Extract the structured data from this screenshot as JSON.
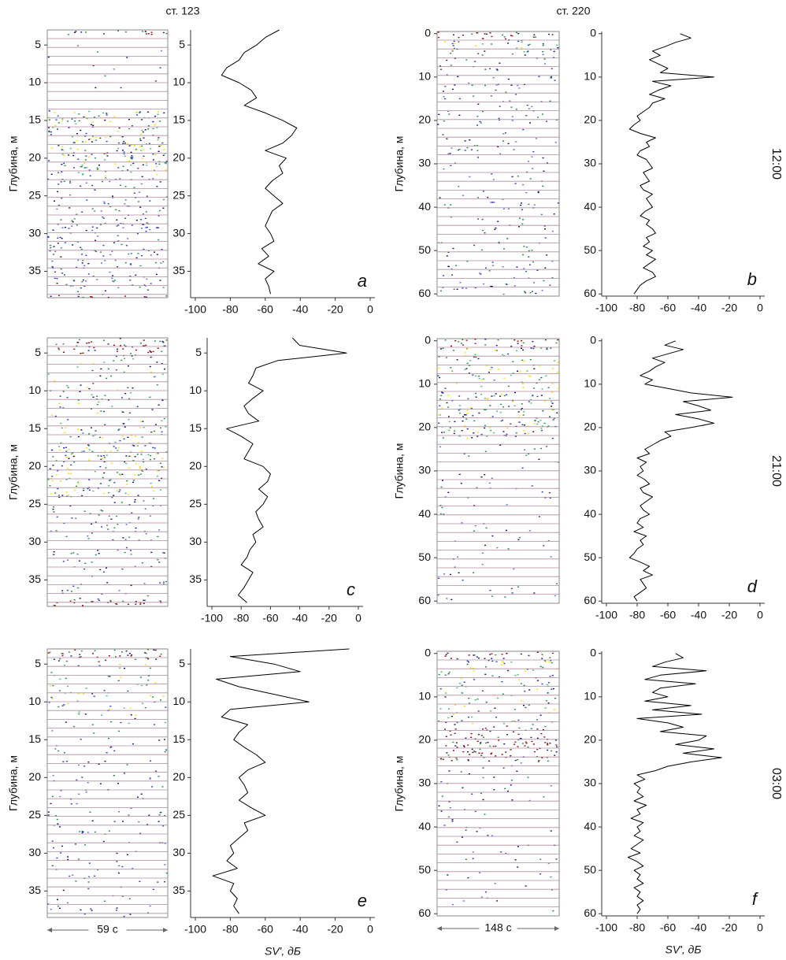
{
  "stations": [
    "ст. 123",
    "ст. 220"
  ],
  "chart_data": [
    {
      "type": "line",
      "panel": "a",
      "ylabel": "Глубина, м",
      "xlim": [
        -100,
        0
      ],
      "xticks": [
        -100,
        -80,
        -60,
        -40,
        -20,
        0
      ],
      "ylim": [
        3,
        38.5
      ],
      "yticks": [
        5,
        10,
        15,
        20,
        25,
        30,
        35
      ],
      "y": [
        3,
        4,
        5,
        6,
        7,
        8,
        9,
        10,
        11,
        12,
        13,
        14,
        15,
        16,
        17,
        18,
        19,
        20,
        21,
        22,
        23,
        24,
        25,
        26,
        27,
        28,
        29,
        30,
        31,
        32,
        33,
        34,
        35,
        36,
        37,
        38
      ],
      "series": [
        {
          "color": "#000000",
          "values": [
            -52,
            -60,
            -65,
            -72,
            -75,
            -82,
            -85,
            -75,
            -68,
            -65,
            -72,
            -60,
            -50,
            -42,
            -45,
            -50,
            -60,
            -48,
            -52,
            -50,
            -56,
            -60,
            -55,
            -50,
            -56,
            -58,
            -60,
            -57,
            -55,
            -62,
            -58,
            -64,
            -55,
            -60,
            -58,
            -57
          ]
        }
      ]
    },
    {
      "type": "line",
      "panel": "b",
      "ylabel": "Глубина, м",
      "time": "12:00",
      "xlim": [
        -100,
        0
      ],
      "xticks": [
        -100,
        -80,
        -60,
        -40,
        -20,
        0
      ],
      "ylim": [
        -0.5,
        60.5
      ],
      "yticks": [
        0,
        10,
        20,
        30,
        40,
        50,
        60
      ],
      "y": [
        0,
        1,
        2,
        3,
        4,
        5,
        6,
        7,
        8,
        9,
        10,
        11,
        12,
        13,
        14,
        15,
        16,
        17,
        18,
        19,
        20,
        21,
        22,
        23,
        24,
        25,
        26,
        27,
        28,
        29,
        30,
        31,
        32,
        33,
        34,
        35,
        36,
        37,
        38,
        39,
        40,
        41,
        42,
        43,
        44,
        45,
        46,
        47,
        48,
        49,
        50,
        51,
        52,
        53,
        54,
        55,
        56,
        57,
        58,
        59,
        60
      ],
      "series": [
        {
          "color": "#000000",
          "values": [
            -52,
            -45,
            -55,
            -62,
            -70,
            -65,
            -72,
            -66,
            -60,
            -65,
            -30,
            -70,
            -58,
            -66,
            -72,
            -62,
            -70,
            -72,
            -76,
            -80,
            -78,
            -82,
            -85,
            -78,
            -68,
            -74,
            -72,
            -78,
            -80,
            -74,
            -72,
            -70,
            -76,
            -74,
            -72,
            -78,
            -76,
            -70,
            -74,
            -72,
            -70,
            -75,
            -78,
            -72,
            -74,
            -70,
            -68,
            -74,
            -72,
            -76,
            -70,
            -74,
            -68,
            -72,
            -76,
            -70,
            -68,
            -74,
            -78,
            -80,
            -82
          ]
        }
      ]
    },
    {
      "type": "line",
      "panel": "c",
      "ylabel": "Глубина, м",
      "xlim": [
        -100,
        0
      ],
      "xticks": [
        -100,
        -80,
        -60,
        -40,
        -20,
        0
      ],
      "ylim": [
        3,
        38.5
      ],
      "yticks": [
        5,
        10,
        15,
        20,
        25,
        30,
        35
      ],
      "y": [
        3,
        4,
        5,
        6,
        7,
        8,
        9,
        10,
        11,
        12,
        13,
        14,
        15,
        16,
        17,
        18,
        19,
        20,
        21,
        22,
        23,
        24,
        25,
        26,
        27,
        28,
        29,
        30,
        31,
        32,
        33,
        34,
        35,
        36,
        37,
        38
      ],
      "series": [
        {
          "color": "#000000",
          "values": [
            -45,
            -40,
            -8,
            -55,
            -70,
            -72,
            -75,
            -65,
            -72,
            -78,
            -75,
            -68,
            -90,
            -80,
            -72,
            -75,
            -78,
            -65,
            -60,
            -62,
            -68,
            -62,
            -65,
            -70,
            -68,
            -65,
            -72,
            -70,
            -74,
            -76,
            -80,
            -72,
            -75,
            -78,
            -82,
            -76
          ]
        }
      ]
    },
    {
      "type": "line",
      "panel": "d",
      "ylabel": "Глубина, м",
      "time": "21:00",
      "xlim": [
        -100,
        0
      ],
      "xticks": [
        -100,
        -80,
        -60,
        -40,
        -20,
        0
      ],
      "ylim": [
        -0.5,
        60.5
      ],
      "yticks": [
        0,
        10,
        20,
        30,
        40,
        50,
        60
      ],
      "y": [
        0,
        1,
        2,
        3,
        4,
        5,
        6,
        7,
        8,
        9,
        10,
        11,
        12,
        13,
        14,
        15,
        16,
        17,
        18,
        19,
        20,
        21,
        22,
        23,
        24,
        25,
        26,
        27,
        28,
        29,
        30,
        31,
        32,
        33,
        34,
        35,
        36,
        37,
        38,
        39,
        40,
        41,
        42,
        43,
        44,
        45,
        46,
        47,
        48,
        49,
        50,
        51,
        52,
        53,
        54,
        55,
        56,
        57,
        58,
        59,
        60
      ],
      "series": [
        {
          "color": "#000000",
          "values": [
            -55,
            -62,
            -50,
            -60,
            -70,
            -62,
            -68,
            -72,
            -78,
            -70,
            -75,
            -60,
            -45,
            -18,
            -50,
            -40,
            -32,
            -55,
            -40,
            -30,
            -45,
            -62,
            -58,
            -65,
            -70,
            -75,
            -72,
            -80,
            -74,
            -78,
            -76,
            -80,
            -75,
            -72,
            -78,
            -76,
            -70,
            -74,
            -78,
            -76,
            -72,
            -78,
            -80,
            -76,
            -82,
            -74,
            -78,
            -76,
            -80,
            -82,
            -85,
            -78,
            -72,
            -76,
            -70,
            -78,
            -76,
            -74,
            -78,
            -82,
            -80
          ]
        }
      ]
    },
    {
      "type": "line",
      "panel": "e",
      "ylabel": "Глубина, м",
      "xlabel": "SV', дБ",
      "duration": "59 с",
      "xlim": [
        -100,
        0
      ],
      "xticks": [
        -100,
        -80,
        -60,
        -40,
        -20,
        0
      ],
      "ylim": [
        3,
        38.5
      ],
      "yticks": [
        5,
        10,
        15,
        20,
        25,
        30,
        35
      ],
      "y": [
        3,
        4,
        5,
        6,
        7,
        8,
        9,
        10,
        11,
        12,
        13,
        14,
        15,
        16,
        17,
        18,
        19,
        20,
        21,
        22,
        23,
        24,
        25,
        26,
        27,
        28,
        29,
        30,
        31,
        32,
        33,
        34,
        35,
        36,
        37,
        38
      ],
      "series": [
        {
          "color": "#000000",
          "values": [
            -12,
            -80,
            -55,
            -40,
            -88,
            -75,
            -55,
            -35,
            -80,
            -85,
            -70,
            -75,
            -78,
            -72,
            -65,
            -60,
            -70,
            -75,
            -72,
            -70,
            -75,
            -68,
            -60,
            -72,
            -70,
            -75,
            -80,
            -78,
            -82,
            -76,
            -90,
            -78,
            -80,
            -76,
            -78,
            -75
          ]
        }
      ]
    },
    {
      "type": "line",
      "panel": "f",
      "ylabel": "Глубина, м",
      "xlabel": "SV', дБ",
      "duration": "148 с",
      "time": "03:00",
      "xlim": [
        -100,
        0
      ],
      "xticks": [
        -100,
        -80,
        -60,
        -40,
        -20,
        0
      ],
      "ylim": [
        -0.5,
        60.5
      ],
      "yticks": [
        0,
        10,
        20,
        30,
        40,
        50,
        60
      ],
      "y": [
        0,
        1,
        2,
        3,
        4,
        5,
        6,
        7,
        8,
        9,
        10,
        11,
        12,
        13,
        14,
        15,
        16,
        17,
        18,
        19,
        20,
        21,
        22,
        23,
        24,
        25,
        26,
        27,
        28,
        29,
        30,
        31,
        32,
        33,
        34,
        35,
        36,
        37,
        38,
        39,
        40,
        41,
        42,
        43,
        44,
        45,
        46,
        47,
        48,
        49,
        50,
        51,
        52,
        53,
        54,
        55,
        56,
        57,
        58,
        59,
        60
      ],
      "series": [
        {
          "color": "#000000",
          "values": [
            -55,
            -50,
            -62,
            -70,
            -35,
            -65,
            -75,
            -42,
            -65,
            -70,
            -60,
            -75,
            -45,
            -70,
            -38,
            -80,
            -60,
            -50,
            -65,
            -35,
            -40,
            -55,
            -30,
            -50,
            -25,
            -45,
            -60,
            -68,
            -80,
            -75,
            -82,
            -78,
            -80,
            -76,
            -82,
            -74,
            -80,
            -78,
            -84,
            -76,
            -80,
            -78,
            -82,
            -76,
            -80,
            -84,
            -78,
            -86,
            -80,
            -76,
            -82,
            -78,
            -80,
            -76,
            -82,
            -78,
            -80,
            -76,
            -80,
            -78,
            -80
          ]
        }
      ]
    }
  ]
}
